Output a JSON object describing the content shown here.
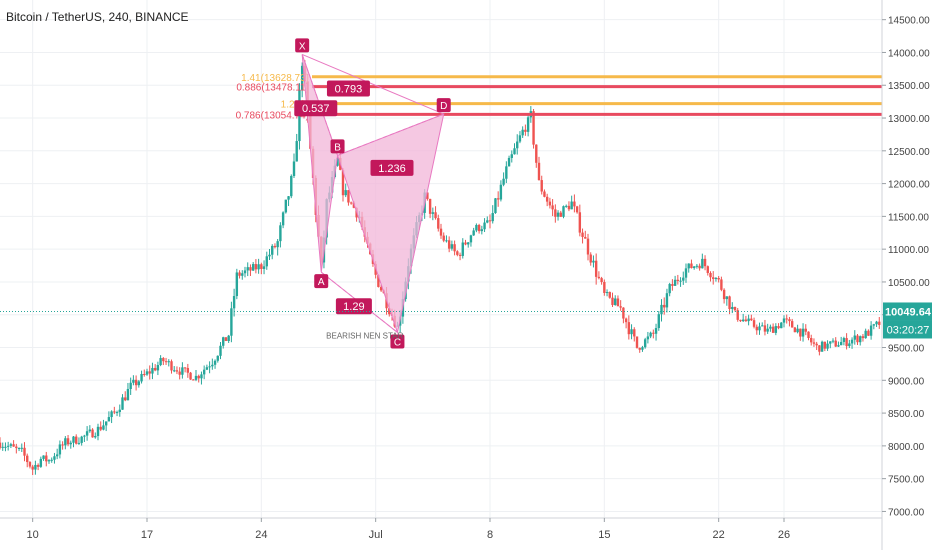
{
  "chart_data": {
    "type": "candlestick",
    "title": "Bitcoin / TetherUS, 240, BINANCE",
    "ylim": [
      6900,
      14800
    ],
    "grid": true,
    "y_ticks": [
      "14500.00",
      "14000.00",
      "13500.00",
      "13000.00",
      "12500.00",
      "12000.00",
      "11500.00",
      "11000.00",
      "10500.00",
      "10000.00",
      "9500.00",
      "9000.00",
      "8500.00",
      "8000.00",
      "7500.00",
      "7000.00"
    ],
    "y_tick_values": [
      14500,
      14000,
      13500,
      13000,
      12500,
      12000,
      11500,
      11000,
      10500,
      10000,
      9500,
      9000,
      8500,
      8000,
      7500,
      7000
    ],
    "x_ticks": [
      "10",
      "17",
      "24",
      "Jul",
      "8",
      "15",
      "22",
      "26"
    ],
    "x_tick_dates": [
      "2019-06-10",
      "2019-06-17",
      "2019-06-24",
      "2019-07-01",
      "2019-07-08",
      "2019-07-15",
      "2019-07-22",
      "2019-07-26"
    ],
    "x_start": "2019-06-08",
    "x_end": "2019-08-01",
    "candle_hours": 4,
    "last_price": "10049.64",
    "countdown": "03:20:27",
    "pattern_points": [
      {
        "label": "X",
        "date": "2019-06-26T12:00",
        "price": 13970
      },
      {
        "label": "A",
        "date": "2019-06-27T16:00",
        "price": 10650
      },
      {
        "label": "B",
        "date": "2019-06-28T16:00",
        "price": 12430
      },
      {
        "label": "C",
        "date": "2019-07-02T08:00",
        "price": 9730
      },
      {
        "label": "D",
        "date": "2019-07-05T04:00",
        "price": 13060
      }
    ],
    "ratio_labels": [
      {
        "text": "0.793",
        "date": "2019-06-29T08:00",
        "price": 13450
      },
      {
        "text": "0.537",
        "date": "2019-06-27T08:00",
        "price": 13150
      },
      {
        "text": "1.236",
        "date": "2019-07-02T00:00",
        "price": 12240
      },
      {
        "text": "1.29",
        "date": "2019-06-29T16:00",
        "price": 10130
      }
    ],
    "fib_levels": [
      {
        "label": "1.41(13628.73)",
        "price": 13628.73,
        "color": "#f6b94a"
      },
      {
        "label": "0.886(13478.11)",
        "price": 13478.11,
        "color": "#e84a5f"
      },
      {
        "label": "1.27(1",
        "price": 13220,
        "color": "#f6b94a"
      },
      {
        "label": "0.786(13054.74)",
        "price": 13054.74,
        "color": "#e84a5f"
      }
    ],
    "annotation": {
      "text": "BEARISH NEN STAR",
      "date": "2019-06-30T08:00",
      "price": 9640
    },
    "series": [
      {
        "name": "",
        "points": [
          [
            "2019-06-08",
            8050
          ],
          [
            "2019-06-09T08:00",
            7900
          ],
          [
            "2019-06-10",
            7650
          ],
          [
            "2019-06-10T12:00",
            7800
          ],
          [
            "2019-06-11",
            7780
          ],
          [
            "2019-06-12",
            8050
          ],
          [
            "2019-06-13",
            8120
          ],
          [
            "2019-06-14",
            8250
          ],
          [
            "2019-06-15",
            8500
          ],
          [
            "2019-06-16",
            8900
          ],
          [
            "2019-06-17",
            9100
          ],
          [
            "2019-06-18",
            9300
          ],
          [
            "2019-06-19",
            9150
          ],
          [
            "2019-06-20",
            9050
          ],
          [
            "2019-06-21",
            9300
          ],
          [
            "2019-06-22",
            9700
          ],
          [
            "2019-06-22T12:00",
            10600
          ],
          [
            "2019-06-23",
            10650
          ],
          [
            "2019-06-24",
            10750
          ],
          [
            "2019-06-25",
            11100
          ],
          [
            "2019-06-26",
            12200
          ],
          [
            "2019-06-26T12:00",
            13900
          ],
          [
            "2019-06-27",
            12500
          ],
          [
            "2019-06-27T16:00",
            10700
          ],
          [
            "2019-06-28",
            11700
          ],
          [
            "2019-06-28T16:00",
            12350
          ],
          [
            "2019-06-29",
            11900
          ],
          [
            "2019-06-30",
            11500
          ],
          [
            "2019-06-30T12:00",
            11000
          ],
          [
            "2019-07-01",
            10600
          ],
          [
            "2019-07-02",
            10000
          ],
          [
            "2019-07-02T08:00",
            9800
          ],
          [
            "2019-07-03",
            10800
          ],
          [
            "2019-07-04",
            11800
          ],
          [
            "2019-07-05",
            11200
          ],
          [
            "2019-07-06",
            10900
          ],
          [
            "2019-07-07",
            11300
          ],
          [
            "2019-07-08",
            11400
          ],
          [
            "2019-07-09",
            12200
          ],
          [
            "2019-07-10",
            12800
          ],
          [
            "2019-07-10T12:00",
            13000
          ],
          [
            "2019-07-11",
            12000
          ],
          [
            "2019-07-12",
            11500
          ],
          [
            "2019-07-13",
            11700
          ],
          [
            "2019-07-14",
            11000
          ],
          [
            "2019-07-15",
            10300
          ],
          [
            "2019-07-16",
            10100
          ],
          [
            "2019-07-17",
            9500
          ],
          [
            "2019-07-18",
            9700
          ],
          [
            "2019-07-19",
            10400
          ],
          [
            "2019-07-20",
            10700
          ],
          [
            "2019-07-21",
            10800
          ],
          [
            "2019-07-22",
            10500
          ],
          [
            "2019-07-23",
            10000
          ],
          [
            "2019-07-24",
            9850
          ],
          [
            "2019-07-25",
            9750
          ],
          [
            "2019-07-26",
            9900
          ],
          [
            "2019-07-27",
            9750
          ],
          [
            "2019-07-28",
            9500
          ],
          [
            "2019-07-29",
            9550
          ],
          [
            "2019-07-30",
            9600
          ],
          [
            "2019-07-31",
            9700
          ],
          [
            "2019-08-01",
            9900
          ]
        ]
      }
    ]
  },
  "colors": {
    "up": "#26a69a",
    "down": "#ef5350",
    "pattern_fill": "#f2b6d8",
    "pattern_line": "#e879c1",
    "label_bg": "#c2185b",
    "label_text": "#ffffff",
    "grid": "#eef0f3",
    "axis_text": "#444444",
    "price_tag": "#26a69a",
    "price_line": "#26a69a",
    "fib_gold": "#f6b94a",
    "fib_red": "#e84a5f"
  }
}
